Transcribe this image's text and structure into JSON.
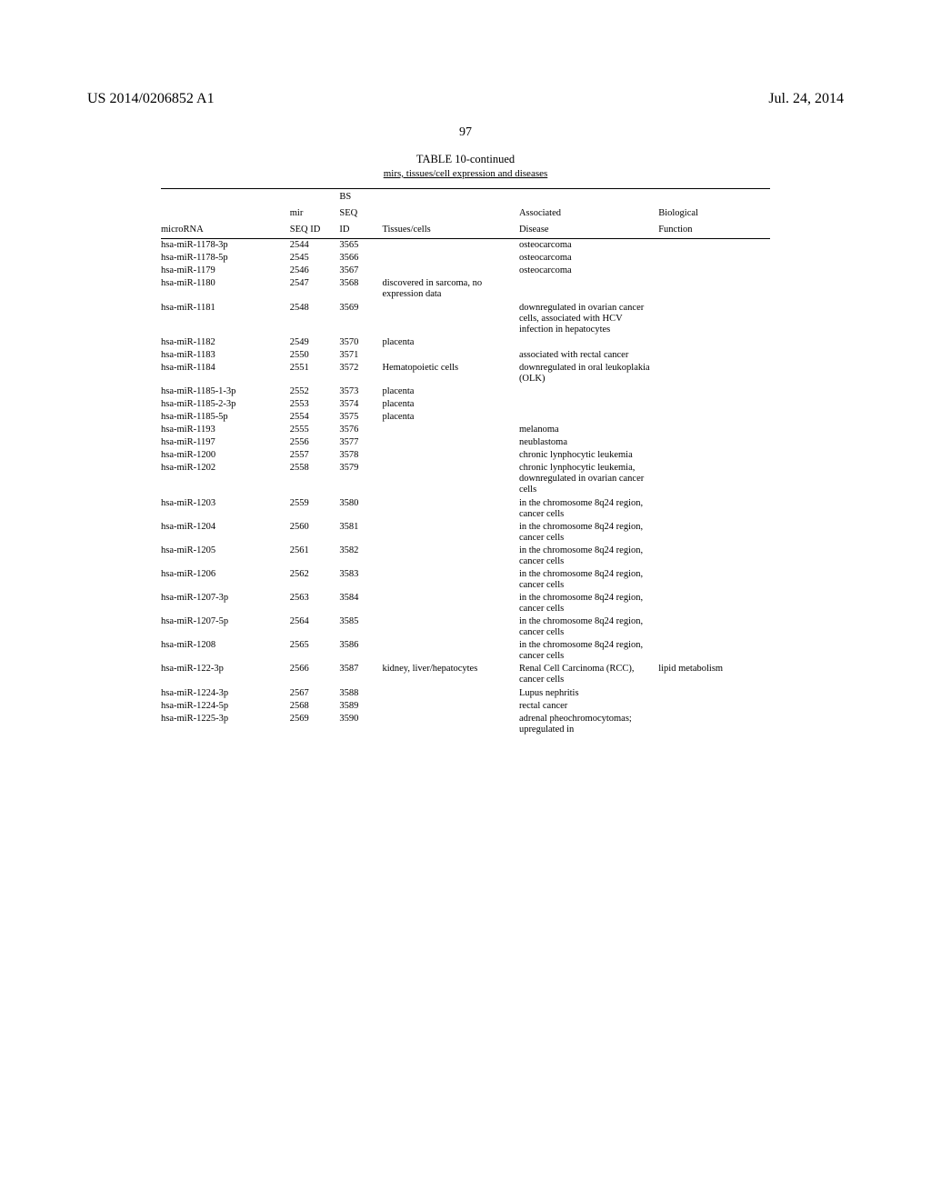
{
  "header": {
    "pub_number": "US 2014/0206852 A1",
    "pub_date": "Jul. 24, 2014"
  },
  "page_number": "97",
  "table": {
    "title": "TABLE 10-continued",
    "subtitle": "mirs, tissues/cell expression and diseases",
    "columns": {
      "microRNA": "microRNA",
      "mir_seq_id_l1": "mir",
      "mir_seq_id_l2": "SEQ ID",
      "bs_seq_l1": "BS",
      "bs_seq_l2": "SEQ",
      "bs_seq_l3": "ID",
      "tissues": "Tissues/cells",
      "disease_l1": "Associated",
      "disease_l2": "Disease",
      "func_l1": "Biological",
      "func_l2": "Function"
    },
    "rows": [
      {
        "mrna": "hsa-miR-1178-3p",
        "seq": "2544",
        "bs": "3565",
        "tissue": "",
        "disease": "osteocarcoma",
        "func": ""
      },
      {
        "mrna": "hsa-miR-1178-5p",
        "seq": "2545",
        "bs": "3566",
        "tissue": "",
        "disease": "osteocarcoma",
        "func": ""
      },
      {
        "mrna": "hsa-miR-1179",
        "seq": "2546",
        "bs": "3567",
        "tissue": "",
        "disease": "osteocarcoma",
        "func": ""
      },
      {
        "mrna": "hsa-miR-1180",
        "seq": "2547",
        "bs": "3568",
        "tissue": "discovered in sarcoma, no expression data",
        "disease": "",
        "func": ""
      },
      {
        "mrna": "hsa-miR-1181",
        "seq": "2548",
        "bs": "3569",
        "tissue": "",
        "disease": "downregulated in ovarian cancer cells, associated with HCV infection in hepatocytes",
        "func": ""
      },
      {
        "mrna": "hsa-miR-1182",
        "seq": "2549",
        "bs": "3570",
        "tissue": "placenta",
        "disease": "",
        "func": ""
      },
      {
        "mrna": "hsa-miR-1183",
        "seq": "2550",
        "bs": "3571",
        "tissue": "",
        "disease": "associated with rectal cancer",
        "func": ""
      },
      {
        "mrna": "hsa-miR-1184",
        "seq": "2551",
        "bs": "3572",
        "tissue": "Hematopoietic cells",
        "disease": "downregulated in oral leukoplakia (OLK)",
        "func": ""
      },
      {
        "mrna": "hsa-miR-1185-1-3p",
        "seq": "2552",
        "bs": "3573",
        "tissue": "placenta",
        "disease": "",
        "func": ""
      },
      {
        "mrna": "hsa-miR-1185-2-3p",
        "seq": "2553",
        "bs": "3574",
        "tissue": "placenta",
        "disease": "",
        "func": ""
      },
      {
        "mrna": "hsa-miR-1185-5p",
        "seq": "2554",
        "bs": "3575",
        "tissue": "placenta",
        "disease": "",
        "func": ""
      },
      {
        "mrna": "hsa-miR-1193",
        "seq": "2555",
        "bs": "3576",
        "tissue": "",
        "disease": "melanoma",
        "func": ""
      },
      {
        "mrna": "hsa-miR-1197",
        "seq": "2556",
        "bs": "3577",
        "tissue": "",
        "disease": "neublastoma",
        "func": ""
      },
      {
        "mrna": "hsa-miR-1200",
        "seq": "2557",
        "bs": "3578",
        "tissue": "",
        "disease": "chronic lynphocytic leukemia",
        "func": ""
      },
      {
        "mrna": "hsa-miR-1202",
        "seq": "2558",
        "bs": "3579",
        "tissue": "",
        "disease": "chronic lynphocytic leukemia, downregulated in ovarian cancer cells",
        "func": ""
      },
      {
        "mrna": "hsa-miR-1203",
        "seq": "2559",
        "bs": "3580",
        "tissue": "",
        "disease": "in the chromosome 8q24 region, cancer cells",
        "func": ""
      },
      {
        "mrna": "hsa-miR-1204",
        "seq": "2560",
        "bs": "3581",
        "tissue": "",
        "disease": "in the chromosome 8q24 region, cancer cells",
        "func": ""
      },
      {
        "mrna": "hsa-miR-1205",
        "seq": "2561",
        "bs": "3582",
        "tissue": "",
        "disease": "in the chromosome 8q24 region, cancer cells",
        "func": ""
      },
      {
        "mrna": "hsa-miR-1206",
        "seq": "2562",
        "bs": "3583",
        "tissue": "",
        "disease": "in the chromosome 8q24 region, cancer cells",
        "func": ""
      },
      {
        "mrna": "hsa-miR-1207-3p",
        "seq": "2563",
        "bs": "3584",
        "tissue": "",
        "disease": "in the chromosome 8q24 region, cancer cells",
        "func": ""
      },
      {
        "mrna": "hsa-miR-1207-5p",
        "seq": "2564",
        "bs": "3585",
        "tissue": "",
        "disease": "in the chromosome 8q24 region, cancer cells",
        "func": ""
      },
      {
        "mrna": "hsa-miR-1208",
        "seq": "2565",
        "bs": "3586",
        "tissue": "",
        "disease": "in the chromosome 8q24 region, cancer cells",
        "func": ""
      },
      {
        "mrna": "hsa-miR-122-3p",
        "seq": "2566",
        "bs": "3587",
        "tissue": "kidney, liver/hepatocytes",
        "disease": "Renal Cell Carcinoma (RCC), cancer cells",
        "func": "lipid metabolism"
      },
      {
        "mrna": "hsa-miR-1224-3p",
        "seq": "2567",
        "bs": "3588",
        "tissue": "",
        "disease": "Lupus nephritis",
        "func": ""
      },
      {
        "mrna": "hsa-miR-1224-5p",
        "seq": "2568",
        "bs": "3589",
        "tissue": "",
        "disease": "rectal cancer",
        "func": ""
      },
      {
        "mrna": "hsa-miR-1225-3p",
        "seq": "2569",
        "bs": "3590",
        "tissue": "",
        "disease": "adrenal pheochromocytomas; upregulated in",
        "func": ""
      }
    ]
  }
}
